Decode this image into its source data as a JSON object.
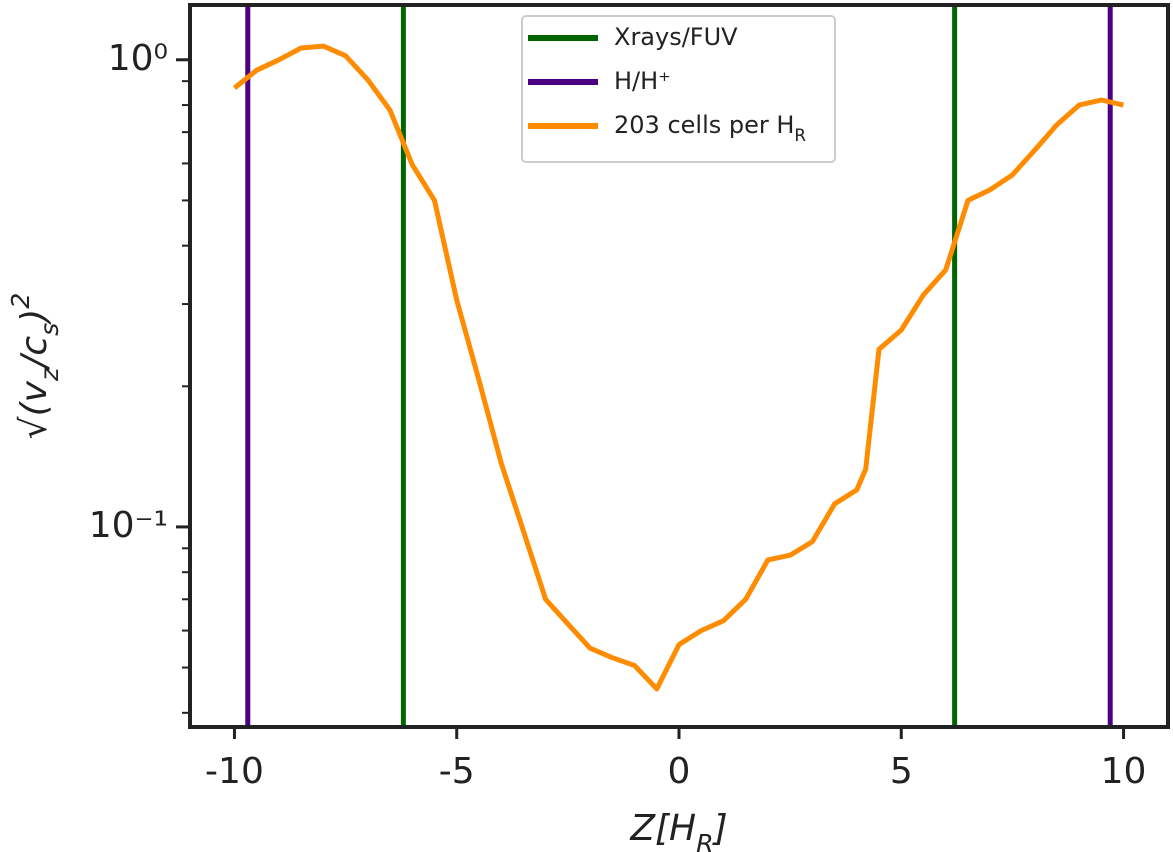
{
  "chart_data": {
    "type": "line",
    "xlabel": "Z[H_R]",
    "ylabel": "√(v_z/c_s)^2",
    "xlim": [
      -11,
      11
    ],
    "xticks": [
      -10,
      -5,
      0,
      5,
      10
    ],
    "ylim": [
      0.0373,
      1.31
    ],
    "log_y": true,
    "yticks": [
      {
        "value": 0.1,
        "label": "10⁻¹"
      },
      {
        "value": 1,
        "label": "10⁰"
      }
    ],
    "yminor_ticks": [
      0.04,
      0.05,
      0.06,
      0.07,
      0.08,
      0.09,
      0.2,
      0.3,
      0.4,
      0.5,
      0.6,
      0.7,
      0.8,
      0.9
    ],
    "legend": "upper center",
    "vlines": [
      {
        "name": "Xrays/FUV",
        "color": "#006400",
        "x": [
          -6.2,
          6.2
        ]
      },
      {
        "name": "H/H⁺",
        "color": "#4b0082",
        "x": [
          -9.7,
          9.7
        ]
      }
    ],
    "series": [
      {
        "name": "203 cells per H_R",
        "color": "#ff8c00",
        "x": [
          -10,
          -9.5,
          -9,
          -8.5,
          -8,
          -7.5,
          -7,
          -6.5,
          -6,
          -5.5,
          -5,
          -4.5,
          -4,
          -3.5,
          -3,
          -2.5,
          -2,
          -1.5,
          -1,
          -0.5,
          0,
          0.5,
          1,
          1.5,
          2,
          2.5,
          3,
          3.5,
          4,
          4.2,
          4.5,
          5,
          5.5,
          6,
          6.5,
          7,
          7.5,
          8,
          8.5,
          9,
          9.5,
          10
        ],
        "values": [
          0.87,
          0.95,
          1.0,
          1.06,
          1.07,
          1.02,
          0.906,
          0.78,
          0.596,
          0.5,
          0.306,
          0.206,
          0.137,
          0.098,
          0.07,
          0.062,
          0.055,
          0.0525,
          0.0505,
          0.045,
          0.056,
          0.06,
          0.063,
          0.07,
          0.085,
          0.087,
          0.093,
          0.112,
          0.12,
          0.133,
          0.24,
          0.264,
          0.314,
          0.355,
          0.5,
          0.527,
          0.567,
          0.64,
          0.726,
          0.8,
          0.82,
          0.8
        ]
      }
    ]
  }
}
